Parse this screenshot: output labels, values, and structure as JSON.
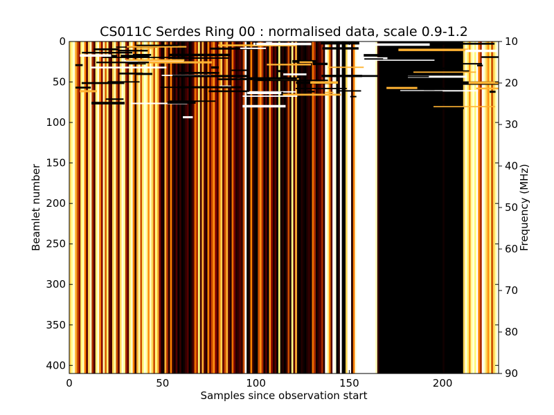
{
  "chart_data": {
    "type": "heatmap",
    "title": "CS011C Serdes Ring 00 : normalised data, scale 0.9-1.2",
    "xlabel": "Samples since observation start",
    "ylabel": "Beamlet number",
    "y2label": "Frequency (MHz)",
    "xlim": [
      0,
      230
    ],
    "ylim": [
      410,
      0
    ],
    "y2lim": [
      90,
      10
    ],
    "color_scale": [
      0.9,
      1.2
    ],
    "colormap": "afmhot",
    "x_ticks": [
      "0",
      "50",
      "100",
      "150",
      "200"
    ],
    "y_ticks": [
      "0",
      "50",
      "100",
      "150",
      "200",
      "250",
      "300",
      "350",
      "400"
    ],
    "y2_ticks": [
      "10",
      "20",
      "30",
      "40",
      "50",
      "60",
      "70",
      "80",
      "90"
    ],
    "noisy_beamlet_region": [
      0,
      95
    ],
    "column_values": [
      1.1,
      1.14,
      1.18,
      1.08,
      1.02,
      0.98,
      1.12,
      1.16,
      1.05,
      0.95,
      1.1,
      1.16,
      1.0,
      0.94,
      1.12,
      1.18,
      1.06,
      0.98,
      1.15,
      1.03,
      1.12,
      0.96,
      0.94,
      1.1,
      1.15,
      1.02,
      0.95,
      1.1,
      1.18,
      1.14,
      1.0,
      0.95,
      1.12,
      1.17,
      1.05,
      0.93,
      1.08,
      1.15,
      1.02,
      1.12,
      1.18,
      1.14,
      1.06,
      1.16,
      1.1,
      1.02,
      1.13,
      1.08,
      0.98,
      0.92,
      0.91,
      1.08,
      1.0,
      0.92,
      1.05,
      0.93,
      0.91,
      0.95,
      0.9,
      0.93,
      0.9,
      0.91,
      0.93,
      0.95,
      0.9,
      0.92,
      0.95,
      1.04,
      1.0,
      1.12,
      0.94,
      1.08,
      0.95,
      0.92,
      1.05,
      0.96,
      1.02,
      1.06,
      0.98,
      0.94,
      1.04,
      1.1,
      0.96,
      1.02,
      1.08,
      0.95,
      0.92,
      1.04,
      0.97,
      0.92,
      0.93,
      0.95,
      0.93,
      1.02,
      1.2,
      0.9,
      0.92,
      1.05,
      0.93,
      0.91,
      0.9,
      1.02,
      1.06,
      1.0,
      0.91,
      0.95,
      0.9,
      1.06,
      0.98,
      0.92,
      0.95,
      0.9,
      1.12,
      0.91,
      0.92,
      0.9,
      0.93,
      1.02,
      0.92,
      1.13,
      0.95,
      1.08,
      0.91,
      0.9,
      0.92,
      0.91,
      0.9,
      0.92,
      0.93,
      0.91,
      1.04,
      1.0,
      0.91,
      0.93,
      0.95,
      1.0,
      0.92,
      1.2,
      1.15,
      1.05,
      0.95,
      1.2,
      1.18,
      0.9,
      0.92,
      1.2,
      0.9,
      0.9,
      1.1,
      1.2,
      1.2,
      0.92,
      1.05,
      1.18,
      1.2,
      1.2,
      1.2,
      1.2,
      1.2,
      1.2,
      1.2,
      1.2,
      1.2,
      1.2,
      1.16,
      0.93,
      0.9,
      0.9,
      0.9,
      0.9,
      0.9,
      0.9,
      0.9,
      0.9,
      0.9,
      0.9,
      0.9,
      0.9,
      0.9,
      0.9,
      0.9,
      0.9,
      0.9,
      0.9,
      0.9,
      0.9,
      0.9,
      0.9,
      0.9,
      0.9,
      0.9,
      0.9,
      0.9,
      0.9,
      0.9,
      0.9,
      0.9,
      0.9,
      0.9,
      0.9,
      0.91,
      0.9,
      0.9,
      0.9,
      0.9,
      0.9,
      0.9,
      0.9,
      0.9,
      0.9,
      0.9,
      1.1,
      1.18,
      1.12,
      1.06,
      1.14,
      1.18,
      1.12,
      1.2,
      1.05,
      1.0,
      1.2,
      1.16,
      1.1,
      1.06,
      1.12,
      1.02,
      1.1,
      1.15,
      1.2
    ]
  }
}
